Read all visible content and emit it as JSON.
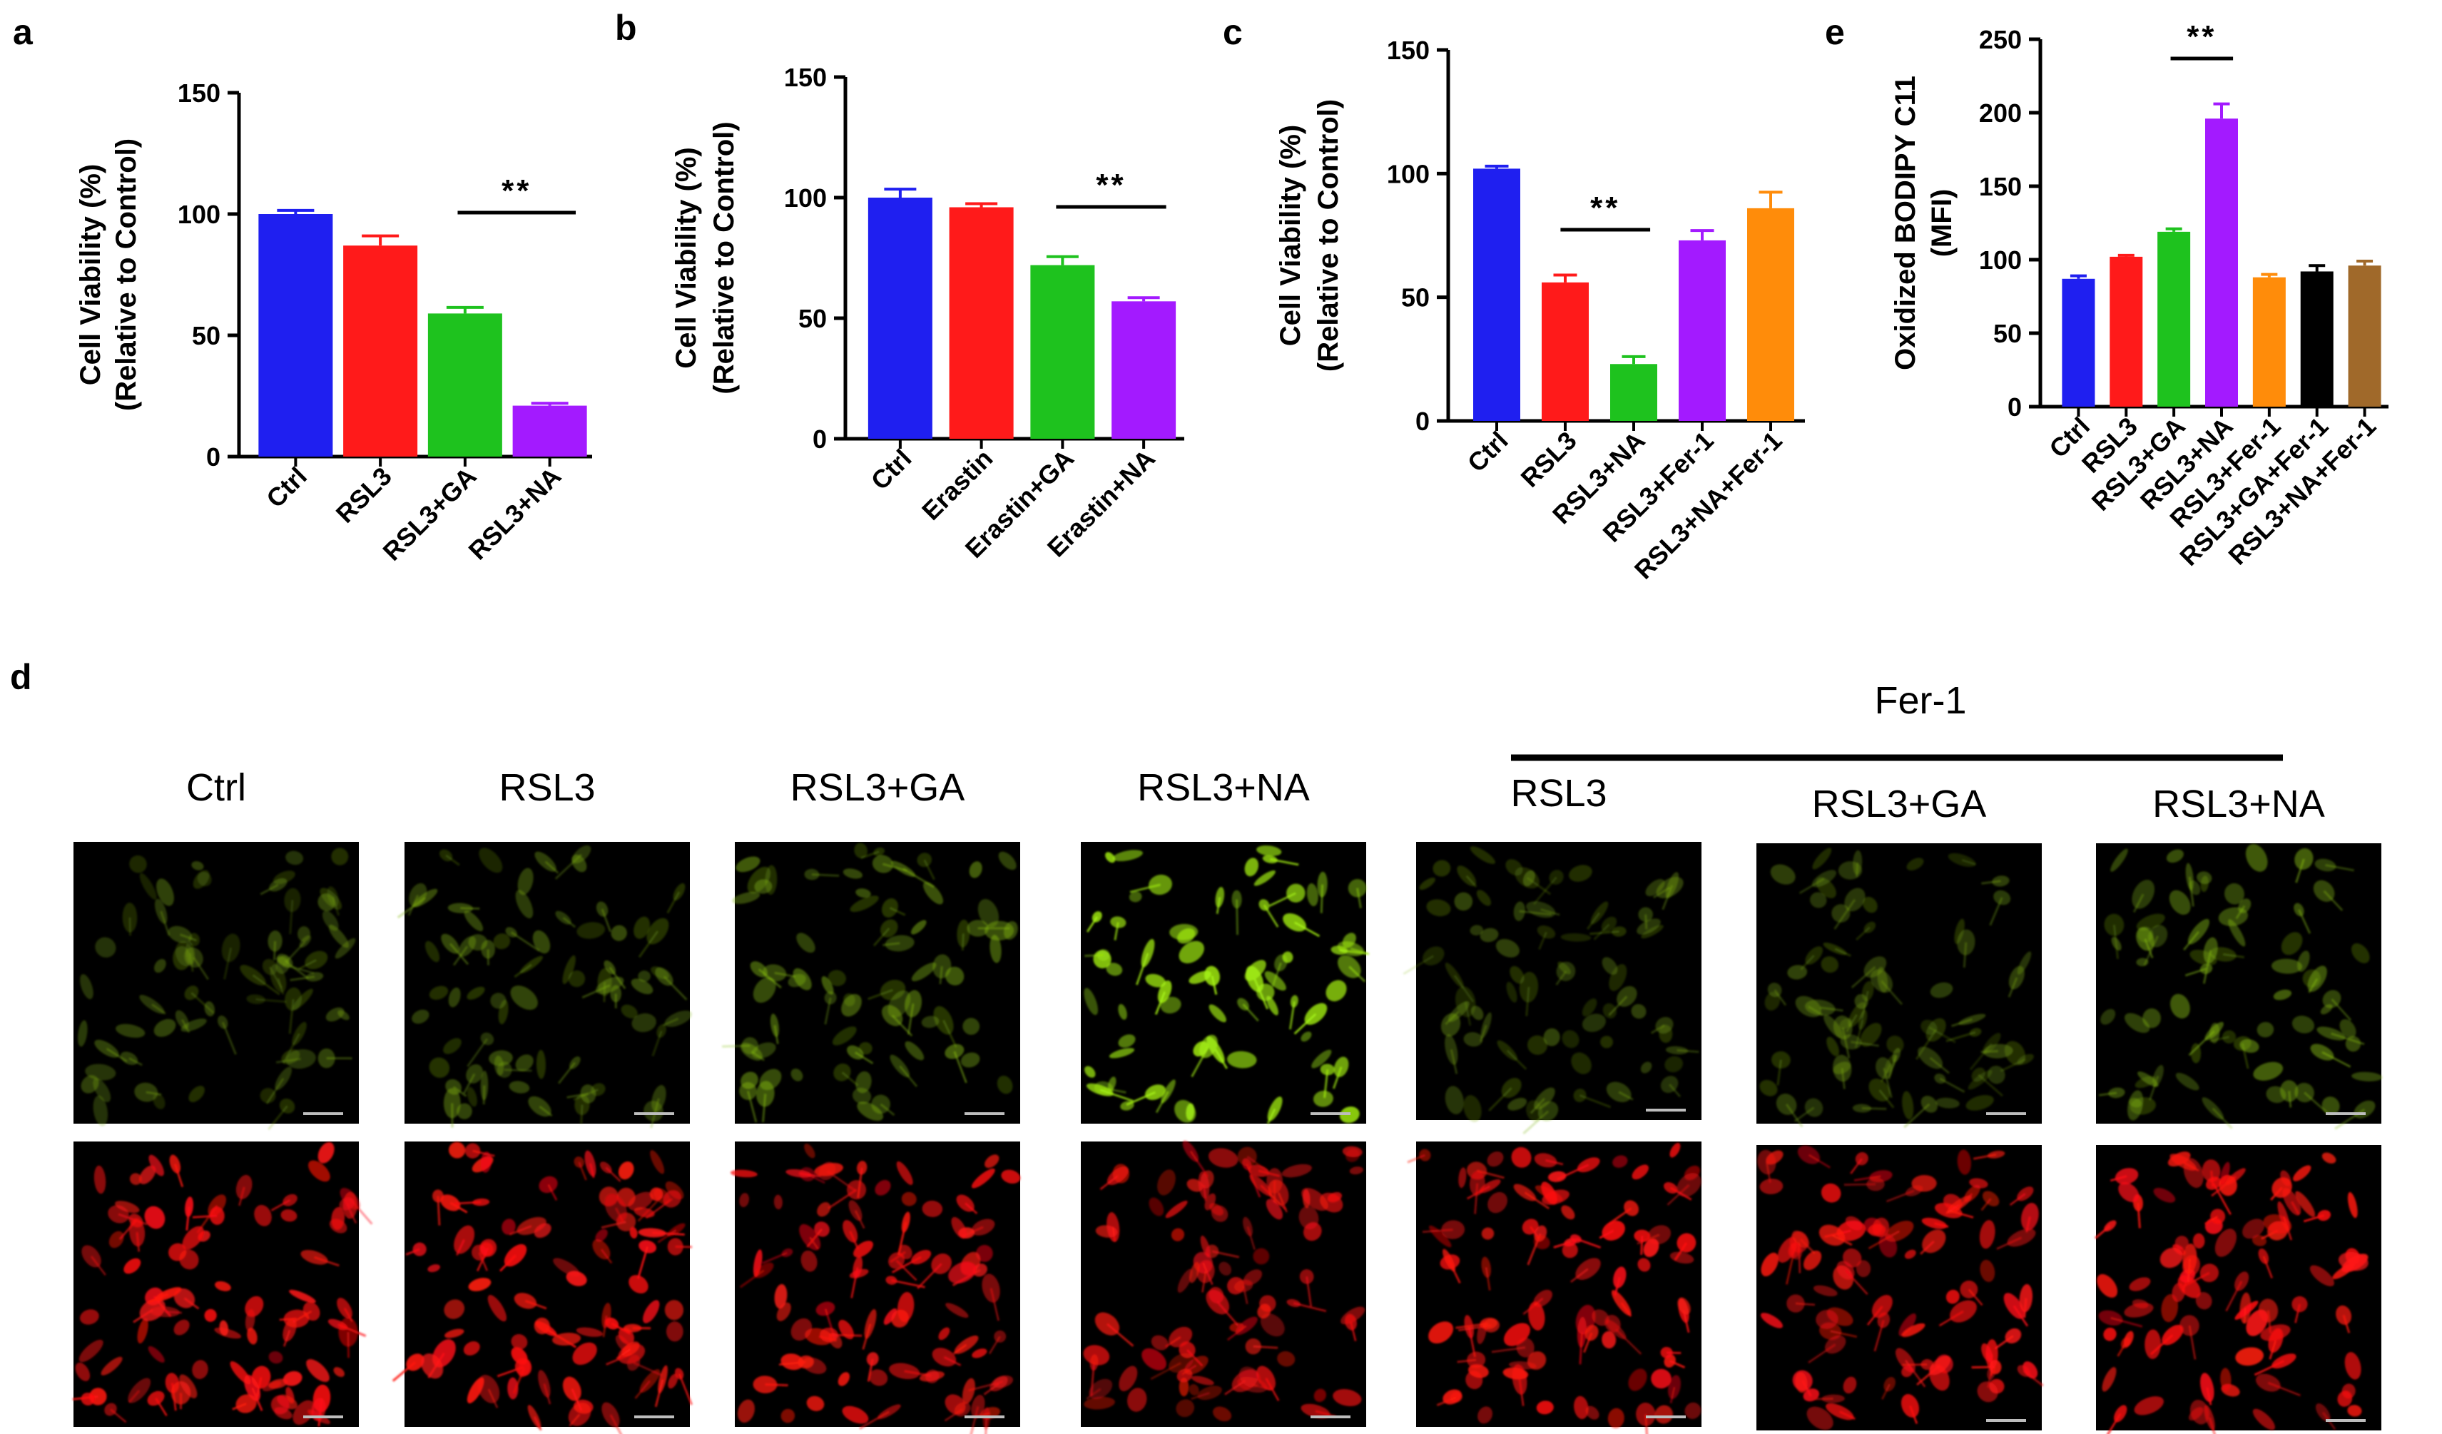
{
  "chart_data": [
    {
      "panel": "a",
      "type": "bar",
      "categories": [
        "Ctrl",
        "RSL3",
        "RSL3+GA",
        "RSL3+NA"
      ],
      "values": [
        100,
        87,
        59,
        21
      ],
      "errors": [
        1.5,
        4,
        2.5,
        1
      ],
      "colors": [
        "#1f1ff0",
        "#ff1a1a",
        "#1ec21e",
        "#a31aff"
      ],
      "ylabel": [
        "Cell Viability (%)",
        "(Relative to Control)"
      ],
      "ylim": [
        0,
        150
      ],
      "yticks": [
        "0",
        "50",
        "100",
        "150"
      ],
      "significance": {
        "label": "**",
        "from": "RSL3+GA",
        "to": "RSL3+NA"
      }
    },
    {
      "panel": "b",
      "type": "bar",
      "categories": [
        "Ctrl",
        "Erastin",
        "Erastin+GA",
        "Erastin+NA"
      ],
      "values": [
        100,
        96,
        72,
        57
      ],
      "errors": [
        3.5,
        1.5,
        3.5,
        1.5
      ],
      "colors": [
        "#1f1ff0",
        "#ff1a1a",
        "#1ec21e",
        "#a31aff"
      ],
      "ylabel": [
        "Cell Viability (%)",
        "(Relative to Control)"
      ],
      "ylim": [
        0,
        150
      ],
      "yticks": [
        "0",
        "50",
        "100",
        "150"
      ],
      "significance": {
        "label": "**",
        "from": "Erastin+GA",
        "to": "Erastin+NA"
      }
    },
    {
      "panel": "c",
      "type": "bar",
      "categories": [
        "Ctrl",
        "RSL3",
        "RSL3+NA",
        "RSL3+Fer-1",
        "RSL3+NA+Fer-1"
      ],
      "values": [
        102,
        56,
        23,
        73,
        86
      ],
      "errors": [
        1,
        3,
        3,
        4,
        6.5
      ],
      "colors": [
        "#1f1ff0",
        "#ff1a1a",
        "#1ec21e",
        "#a31aff",
        "#ff8c0a"
      ],
      "ylabel": [
        "Cell Viability (%)",
        "(Relative to Control)"
      ],
      "ylim": [
        0,
        150
      ],
      "yticks": [
        "0",
        "50",
        "100",
        "150"
      ],
      "significance": {
        "label": "**",
        "from": "RSL3",
        "to": "RSL3+NA"
      }
    },
    {
      "panel": "e",
      "type": "bar",
      "categories": [
        "Ctrl",
        "RSL3",
        "RSL3+GA",
        "RSL3+NA",
        "RSL3+Fer-1",
        "RSL3+GA+Fer-1",
        "RSL3+NA+Fer-1"
      ],
      "values": [
        87,
        102,
        119,
        196,
        88,
        92,
        96
      ],
      "errors": [
        2,
        1,
        2,
        10,
        2,
        4,
        3
      ],
      "colors": [
        "#1f1ff0",
        "#ff1a1a",
        "#1ec21e",
        "#a31aff",
        "#ff8c0a",
        "#000000",
        "#a0692a"
      ],
      "ylabel": [
        "Oxidized BODIPY C11",
        "(MFI)"
      ],
      "ylim": [
        0,
        250
      ],
      "yticks": [
        "0",
        "50",
        "100",
        "150",
        "200",
        "250"
      ],
      "significance": {
        "label": "**",
        "from": "RSL3+GA",
        "to": "RSL3+NA"
      }
    }
  ],
  "panel_d": {
    "letter": "d",
    "group_label": "Fer-1",
    "columns": [
      {
        "label": "Ctrl",
        "green_intensity": 0.35,
        "red_intensity": 0.9
      },
      {
        "label": "RSL3",
        "green_intensity": 0.4,
        "red_intensity": 0.9
      },
      {
        "label": "RSL3+GA",
        "green_intensity": 0.5,
        "red_intensity": 0.85
      },
      {
        "label": "RSL3+NA",
        "green_intensity": 0.95,
        "red_intensity": 0.7
      },
      {
        "label": "RSL3",
        "green_intensity": 0.35,
        "red_intensity": 0.9
      },
      {
        "label": "RSL3+GA",
        "green_intensity": 0.35,
        "red_intensity": 0.85
      },
      {
        "label": "RSL3+NA",
        "green_intensity": 0.5,
        "red_intensity": 0.9
      }
    ]
  }
}
